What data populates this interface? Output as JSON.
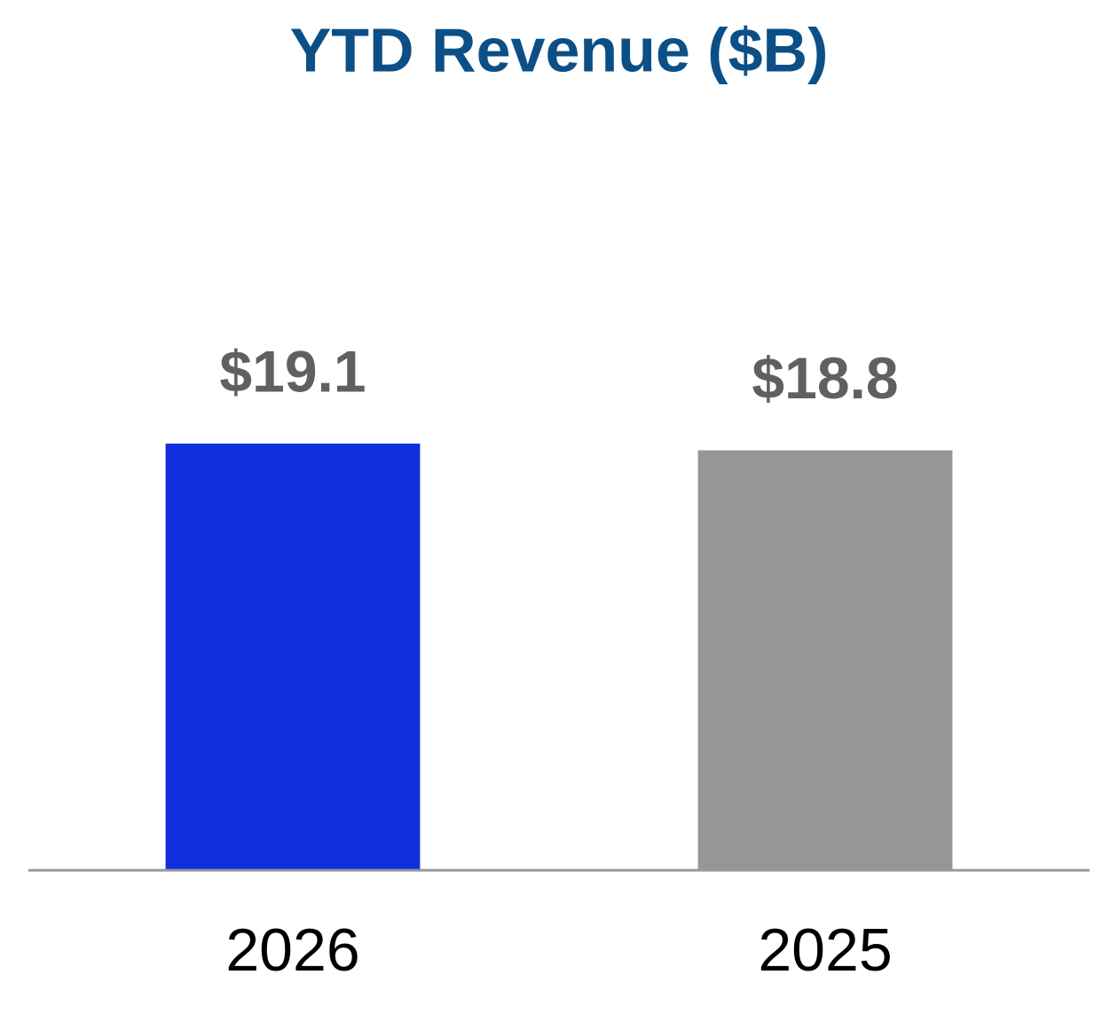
{
  "chart_data": {
    "type": "bar",
    "title": "YTD Revenue ($B)",
    "categories": [
      "2026",
      "2025"
    ],
    "values": [
      19.1,
      18.8
    ],
    "value_labels": [
      "$19.1",
      "$18.8"
    ],
    "colors": [
      "#1030e0",
      "#969696"
    ],
    "ylim": [
      0,
      39
    ]
  }
}
